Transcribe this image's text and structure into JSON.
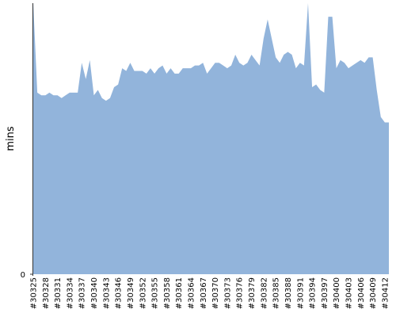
{
  "chart_data": {
    "type": "area",
    "title": "",
    "xlabel": "",
    "ylabel": "mins",
    "ylim": [
      0,
      100
    ],
    "y_ticks": [
      {
        "value": 0,
        "label": "0"
      }
    ],
    "grid": false,
    "legend": "none",
    "colors": {
      "fill": "#92b4db",
      "axis": "#333333",
      "text": "#000000"
    },
    "x_labels": [
      "#30325",
      "#30328",
      "#30331",
      "#30334",
      "#30337",
      "#30340",
      "#30343",
      "#30346",
      "#30349",
      "#30352",
      "#30355",
      "#30358",
      "#30361",
      "#30364",
      "#30367",
      "#30370",
      "#30373",
      "#30376",
      "#30379",
      "#30382",
      "#30385",
      "#30388",
      "#30391",
      "#30394",
      "#30397",
      "#30400",
      "#30403",
      "#30406",
      "#30409",
      "#30412"
    ],
    "x_label_step": 3,
    "series": [
      {
        "values": [
          100,
          67,
          66,
          66,
          67,
          66,
          66,
          65,
          66,
          67,
          67,
          67,
          78,
          72,
          79,
          66,
          68,
          65,
          64,
          65,
          69,
          70,
          76,
          75,
          78,
          75,
          75,
          75,
          74,
          76,
          74,
          76,
          77,
          74,
          76,
          74,
          74,
          76,
          76,
          76,
          77,
          77,
          78,
          74,
          76,
          78,
          78,
          77,
          76,
          77,
          81,
          78,
          77,
          78,
          81,
          79,
          77,
          87,
          94,
          87,
          80,
          78,
          81,
          82,
          81,
          76,
          78,
          77,
          100,
          69,
          70,
          68,
          67,
          95,
          95,
          76,
          79,
          78,
          76,
          77,
          78,
          79,
          78,
          80,
          80,
          68,
          58,
          56,
          56
        ]
      }
    ]
  }
}
